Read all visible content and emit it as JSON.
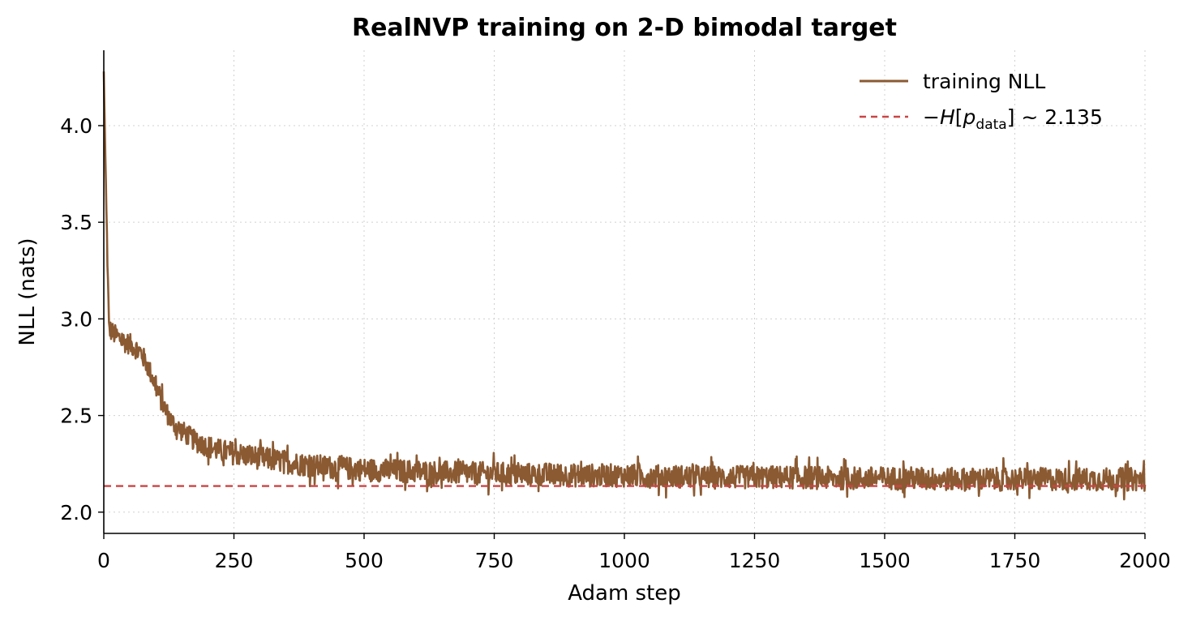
{
  "chart_data": {
    "type": "line",
    "title": "RealNVP training on 2-D bimodal target",
    "xlabel": "Adam step",
    "ylabel": "NLL (nats)",
    "xlim": [
      0,
      2000
    ],
    "ylim": [
      1.89,
      4.39
    ],
    "xticks": [
      0,
      250,
      500,
      750,
      1000,
      1250,
      1500,
      1750,
      2000
    ],
    "yticks": [
      2.0,
      2.5,
      3.0,
      3.5,
      4.0
    ],
    "xtick_labels": [
      "0",
      "250",
      "500",
      "750",
      "1000",
      "1250",
      "1500",
      "1750",
      "2000"
    ],
    "ytick_labels": [
      "2.0",
      "2.5",
      "3.0",
      "3.5",
      "4.0"
    ],
    "grid": true,
    "legend_position": "top-right",
    "series": [
      {
        "name": "training NLL",
        "color": "#8b5a32",
        "style": "solid",
        "x": [
          0,
          5,
          10,
          20,
          30,
          40,
          50,
          60,
          70,
          80,
          90,
          100,
          110,
          120,
          130,
          140,
          150,
          160,
          170,
          180,
          190,
          200,
          220,
          240,
          260,
          280,
          300,
          325,
          350,
          375,
          400,
          450,
          500,
          550,
          600,
          650,
          700,
          750,
          800,
          850,
          900,
          950,
          1000,
          1050,
          1100,
          1150,
          1200,
          1250,
          1300,
          1350,
          1400,
          1450,
          1500,
          1550,
          1600,
          1650,
          1700,
          1750,
          1800,
          1850,
          1900,
          1950,
          2000
        ],
        "y": [
          4.28,
          3.55,
          2.95,
          2.92,
          2.9,
          2.88,
          2.87,
          2.85,
          2.83,
          2.78,
          2.72,
          2.65,
          2.58,
          2.52,
          2.47,
          2.44,
          2.42,
          2.4,
          2.38,
          2.36,
          2.35,
          2.34,
          2.32,
          2.31,
          2.3,
          2.29,
          2.28,
          2.27,
          2.26,
          2.25,
          2.24,
          2.23,
          2.22,
          2.215,
          2.21,
          2.205,
          2.2,
          2.2,
          2.195,
          2.195,
          2.19,
          2.19,
          2.19,
          2.185,
          2.185,
          2.18,
          2.18,
          2.18,
          2.18,
          2.18,
          2.175,
          2.175,
          2.175,
          2.175,
          2.17,
          2.17,
          2.17,
          2.17,
          2.17,
          2.17,
          2.17,
          2.17,
          2.17
        ],
        "noise_amplitude": 0.1
      },
      {
        "name": "−H[p_data] ~ 2.135",
        "color": "#cc4444",
        "style": "dashed",
        "x": [
          0,
          2000
        ],
        "y": [
          2.135,
          2.135
        ]
      }
    ],
    "legend": [
      {
        "label": "training NLL",
        "color": "#8b5a32",
        "style": "solid"
      },
      {
        "label_prefix": "−",
        "label_H": "H",
        "label_bracket_open": "[",
        "label_p": "p",
        "label_sub": "data",
        "label_suffix": "] ~ 2.135",
        "color": "#cc4444",
        "style": "dashed"
      }
    ]
  }
}
